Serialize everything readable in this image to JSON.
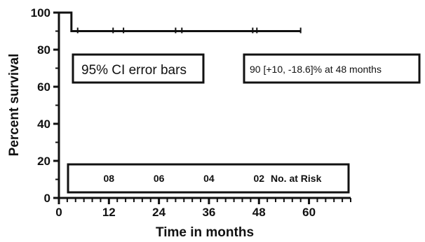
{
  "chart_data": {
    "type": "line",
    "subtype": "kaplan-meier",
    "xlabel": "Time in months",
    "ylabel": "Percent survival",
    "xlim": [
      0,
      70
    ],
    "ylim": [
      0,
      100
    ],
    "x_ticks": [
      "0",
      "12",
      "24",
      "36",
      "48",
      "60"
    ],
    "y_ticks": [
      "0",
      "20",
      "40",
      "60",
      "80",
      "100"
    ],
    "x_tick_values": [
      0,
      12,
      24,
      36,
      48,
      60
    ],
    "y_tick_values": [
      0,
      20,
      40,
      60,
      80,
      100
    ],
    "series": [
      {
        "steps": [
          {
            "x": 0,
            "y": 100
          },
          {
            "x": 3,
            "y": 100
          },
          {
            "x": 3,
            "y": 90
          },
          {
            "x": 58,
            "y": 90
          }
        ],
        "censored": [
          4.5,
          13,
          15.5,
          28,
          29.5,
          46.5,
          47.5,
          58
        ]
      }
    ],
    "annotations": {
      "ci_label": "95% CI error bars",
      "survival_label": "90 [+10, -18.6]% at 48 months"
    },
    "risk_table": {
      "values": [
        "08",
        "06",
        "04",
        "02"
      ],
      "positions": [
        12,
        24,
        36,
        48
      ],
      "label": "No. at Risk"
    },
    "grid": false,
    "colors": {
      "line": "#111111",
      "background": "#ffffff"
    }
  }
}
